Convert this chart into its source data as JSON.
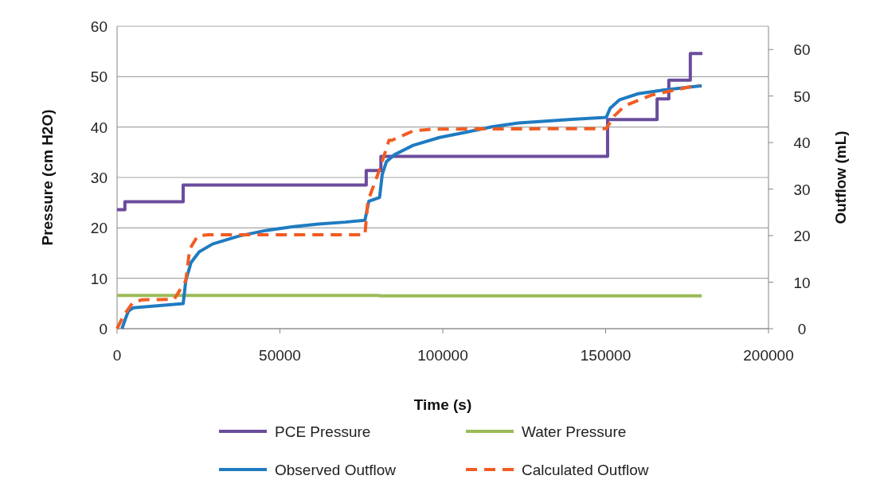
{
  "chart_data": {
    "type": "line",
    "xlabel": "Time (s)",
    "ylabel": "Pressure (cm H2O)",
    "y2label": "Outflow (mL)",
    "xlim": [
      0,
      200000
    ],
    "xticks": [
      0,
      50000,
      100000,
      150000,
      200000
    ],
    "ylim": [
      0,
      60
    ],
    "yticks": [
      0,
      10,
      20,
      30,
      40,
      50,
      60
    ],
    "y2lim": [
      0,
      65
    ],
    "y2ticks": [
      0,
      10,
      20,
      30,
      40,
      50,
      60
    ],
    "grid": "y",
    "legend": "bottom",
    "marker": "none",
    "series": [
      {
        "name": "PCE Pressure",
        "color": "#6a4c9c",
        "line_style": "solid",
        "x": [
          0,
          2400,
          2400,
          20300,
          20300,
          76500,
          76500,
          81000,
          81000,
          150600,
          150600,
          165800,
          165800,
          169400,
          169400,
          176000,
          176000,
          179700
        ],
        "values": [
          23.6,
          23.6,
          25.2,
          25.2,
          28.5,
          28.5,
          31.4,
          31.4,
          34.2,
          34.2,
          41.5,
          41.5,
          45.6,
          45.6,
          49.3,
          49.3,
          54.6,
          54.6
        ]
      },
      {
        "name": "Water Pressure",
        "color": "#9bbb59",
        "line_style": "solid",
        "x": [
          0,
          80000,
          81000,
          179500
        ],
        "values": [
          6.6,
          6.6,
          6.5,
          6.5
        ]
      },
      {
        "name": "Observed Outflow",
        "color": "#1f7bc1",
        "line_style": "solid",
        "axis": "y2",
        "x": [
          1500,
          2500,
          3500,
          5000,
          20300,
          21100,
          22700,
          25200,
          29300,
          37400,
          45600,
          53700,
          61900,
          70000,
          76100,
          77300,
          80600,
          81400,
          82700,
          85200,
          90900,
          99000,
          107000,
          115200,
          123300,
          131500,
          139600,
          150200,
          151400,
          154300,
          160000,
          168000,
          179500
        ],
        "values": [
          0,
          2,
          3.8,
          4.5,
          5.4,
          10.3,
          14.2,
          16.5,
          18.2,
          19.9,
          21.1,
          21.9,
          22.5,
          22.9,
          23.3,
          27.4,
          28.2,
          33.1,
          35.9,
          37.4,
          39.4,
          41.1,
          42.2,
          43.4,
          44.2,
          44.6,
          45,
          45.4,
          47.4,
          49.2,
          50.5,
          51.3,
          52.2
        ]
      },
      {
        "name": "Calculated Outflow",
        "color": "#f25c22",
        "line_style": "dashed",
        "axis": "y2",
        "x": [
          0,
          2000,
          4900,
          7700,
          17500,
          21100,
          22300,
          24700,
          28000,
          76100,
          77000,
          80600,
          83500,
          84400,
          90900,
          97400,
          150200,
          152600,
          155900,
          164000,
          172100,
          178600
        ],
        "values": [
          0,
          2.8,
          5.7,
          6.2,
          6.3,
          10.3,
          17.1,
          19.9,
          20.2,
          20.2,
          27.4,
          34.2,
          40.5,
          40.5,
          42.5,
          42.9,
          43,
          45.7,
          47.9,
          50.2,
          51.4,
          52.4
        ]
      }
    ]
  }
}
